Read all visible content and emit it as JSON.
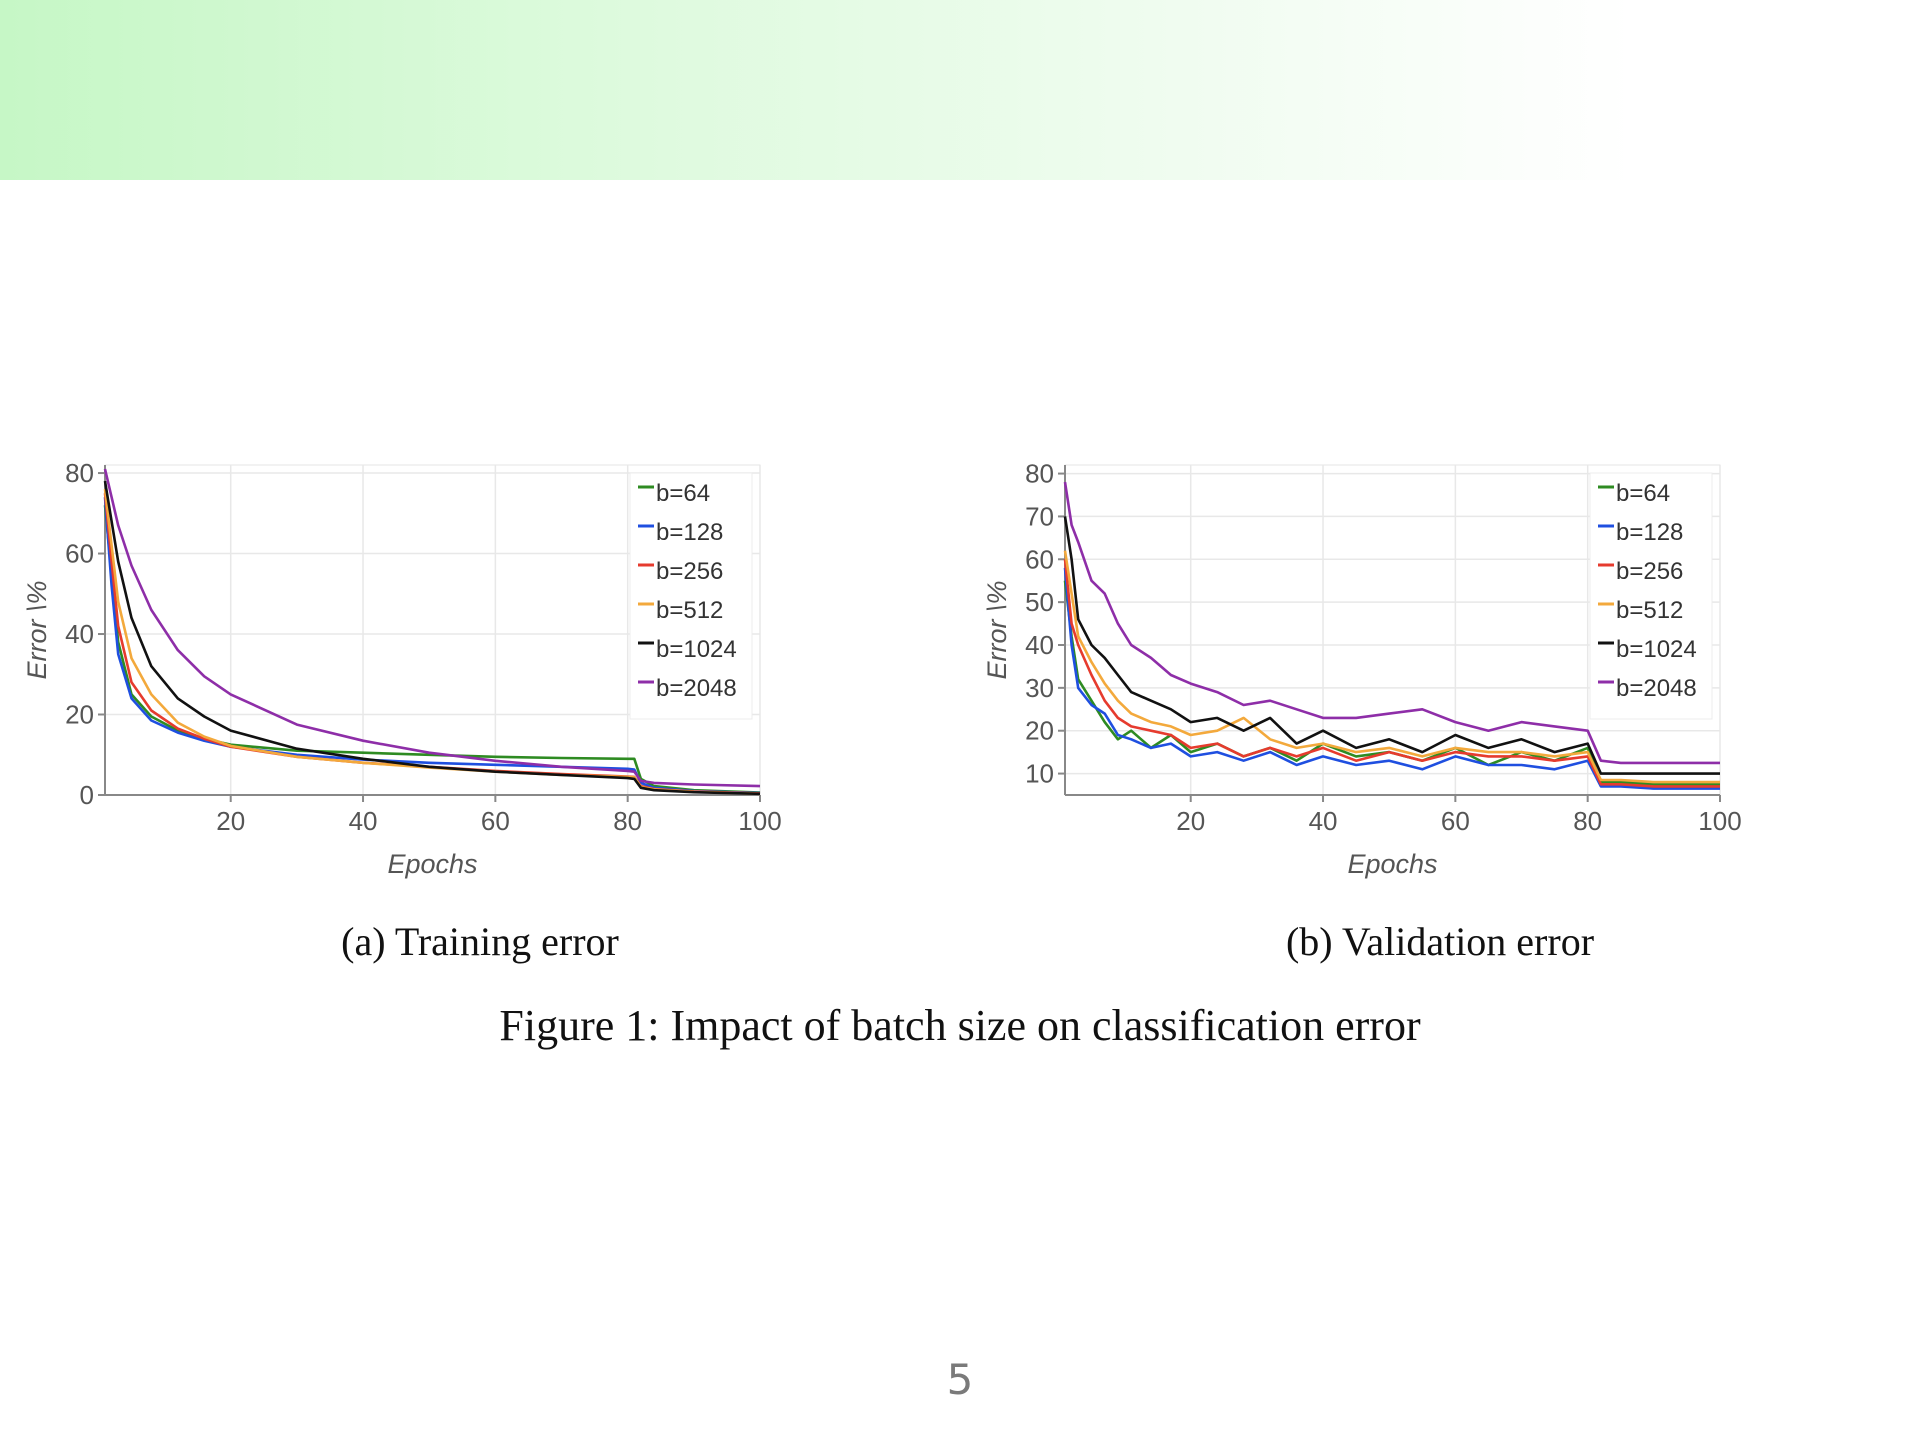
{
  "page_number": "5",
  "figure_caption": "Figure 1: Impact of batch size on classification error",
  "series_colors": {
    "b=64": "#2e8b22",
    "b=128": "#1f4fe0",
    "b=256": "#e63b2e",
    "b=512": "#f3a93c",
    "b=1024": "#111111",
    "b=2048": "#8e2ea8"
  },
  "chart_data": [
    {
      "type": "line",
      "caption": "(a) Training error",
      "xlabel": "Epochs",
      "ylabel": "Error \\%",
      "xlim": [
        1,
        100
      ],
      "ylim": [
        0,
        82
      ],
      "xticks": [
        20,
        40,
        60,
        80,
        100
      ],
      "yticks": [
        0,
        20,
        40,
        60,
        80
      ],
      "grid": true,
      "legend_position": "top-right",
      "series": [
        {
          "name": "b=64",
          "x": [
            1,
            2,
            3,
            5,
            8,
            12,
            16,
            20,
            30,
            40,
            50,
            60,
            70,
            80,
            81,
            82,
            84,
            90,
            100
          ],
          "values": [
            72,
            55,
            38,
            25,
            19.5,
            16,
            14,
            12.5,
            11,
            10.5,
            10,
            9.5,
            9.2,
            9,
            9,
            4,
            2.2,
            1.2,
            0.6
          ]
        },
        {
          "name": "b=128",
          "x": [
            1,
            2,
            3,
            5,
            8,
            12,
            16,
            20,
            30,
            40,
            50,
            60,
            70,
            80,
            81,
            82,
            84,
            90,
            100
          ],
          "values": [
            74,
            52,
            35,
            24,
            18.5,
            15.5,
            13.5,
            12,
            10,
            8.8,
            8,
            7.5,
            7,
            6.5,
            6.3,
            3,
            1.8,
            1,
            0.5
          ]
        },
        {
          "name": "b=256",
          "x": [
            1,
            2,
            3,
            5,
            8,
            12,
            16,
            20,
            30,
            40,
            50,
            60,
            70,
            80,
            81,
            82,
            84,
            90,
            100
          ],
          "values": [
            75,
            58,
            42,
            28,
            21,
            16.5,
            14,
            12,
            9.5,
            8,
            7,
            6,
            5.2,
            4.6,
            4.5,
            2.2,
            1.5,
            0.9,
            0.4
          ]
        },
        {
          "name": "b=512",
          "x": [
            1,
            2,
            3,
            5,
            8,
            12,
            16,
            20,
            30,
            40,
            50,
            60,
            70,
            80,
            81,
            82,
            84,
            90,
            100
          ],
          "values": [
            76,
            62,
            48,
            34,
            25,
            18,
            14.5,
            12.2,
            9.5,
            8,
            6.8,
            5.8,
            5,
            4.5,
            4.4,
            2,
            1.4,
            0.8,
            0.3
          ]
        },
        {
          "name": "b=1024",
          "x": [
            1,
            2,
            3,
            5,
            8,
            12,
            16,
            20,
            30,
            40,
            50,
            60,
            70,
            80,
            81,
            82,
            84,
            90,
            100
          ],
          "values": [
            78,
            68,
            58,
            44,
            32,
            24,
            19.5,
            16,
            11.5,
            9,
            7,
            5.8,
            5,
            4.2,
            4,
            1.8,
            1.2,
            0.7,
            0.3
          ]
        },
        {
          "name": "b=2048",
          "x": [
            1,
            2,
            3,
            5,
            8,
            12,
            16,
            20,
            30,
            40,
            50,
            60,
            70,
            80,
            81,
            82,
            84,
            90,
            100
          ],
          "values": [
            81,
            74,
            67,
            57,
            46,
            36,
            29.5,
            25,
            17.5,
            13.5,
            10.5,
            8.5,
            7,
            6,
            5.8,
            3.5,
            3,
            2.6,
            2.2
          ]
        }
      ]
    },
    {
      "type": "line",
      "caption": "(b) Validation error",
      "xlabel": "Epochs",
      "ylabel": "Error \\%",
      "xlim": [
        1,
        100
      ],
      "ylim": [
        5,
        82
      ],
      "xticks": [
        20,
        40,
        60,
        80,
        100
      ],
      "yticks": [
        10,
        20,
        30,
        40,
        50,
        60,
        70,
        80
      ],
      "grid": true,
      "legend_position": "top-right",
      "series": [
        {
          "name": "b=64",
          "x": [
            1,
            2,
            3,
            5,
            7,
            9,
            11,
            14,
            17,
            20,
            24,
            28,
            32,
            36,
            40,
            45,
            50,
            55,
            60,
            65,
            70,
            75,
            80,
            82,
            85,
            90,
            100
          ],
          "values": [
            55,
            42,
            32,
            27,
            22,
            18,
            20,
            16,
            19,
            15,
            17,
            14,
            16,
            13,
            17,
            14,
            15,
            13,
            16,
            12,
            15,
            13,
            16,
            8,
            8,
            7.5,
            7.5
          ]
        },
        {
          "name": "b=128",
          "x": [
            1,
            2,
            3,
            5,
            7,
            9,
            11,
            14,
            17,
            20,
            24,
            28,
            32,
            36,
            40,
            45,
            50,
            55,
            60,
            65,
            70,
            75,
            80,
            82,
            85,
            90,
            100
          ],
          "values": [
            58,
            40,
            30,
            26,
            24,
            19,
            18,
            16,
            17,
            14,
            15,
            13,
            15,
            12,
            14,
            12,
            13,
            11,
            14,
            12,
            12,
            11,
            13,
            7,
            7,
            6.5,
            6.5
          ]
        },
        {
          "name": "b=256",
          "x": [
            1,
            2,
            3,
            5,
            7,
            9,
            11,
            14,
            17,
            20,
            24,
            28,
            32,
            36,
            40,
            45,
            50,
            55,
            60,
            65,
            70,
            75,
            80,
            82,
            85,
            90,
            100
          ],
          "values": [
            60,
            45,
            40,
            33,
            27,
            23,
            21,
            20,
            19,
            16,
            17,
            14,
            16,
            14,
            16,
            13,
            15,
            13,
            15,
            14,
            14,
            13,
            14,
            7.5,
            7.5,
            7,
            7
          ]
        },
        {
          "name": "b=512",
          "x": [
            1,
            2,
            3,
            5,
            7,
            9,
            11,
            14,
            17,
            20,
            24,
            28,
            32,
            36,
            40,
            45,
            50,
            55,
            60,
            65,
            70,
            75,
            80,
            82,
            85,
            90,
            100
          ],
          "values": [
            62,
            52,
            42,
            36,
            31,
            27,
            24,
            22,
            21,
            19,
            20,
            23,
            18,
            16,
            17,
            15,
            16,
            14,
            16,
            15,
            15,
            14,
            15,
            8.5,
            8.5,
            8,
            8
          ]
        },
        {
          "name": "b=1024",
          "x": [
            1,
            2,
            3,
            5,
            7,
            9,
            11,
            14,
            17,
            20,
            24,
            28,
            32,
            36,
            40,
            45,
            50,
            55,
            60,
            65,
            70,
            75,
            80,
            82,
            85,
            90,
            100
          ],
          "values": [
            70,
            60,
            46,
            40,
            37,
            33,
            29,
            27,
            25,
            22,
            23,
            20,
            23,
            17,
            20,
            16,
            18,
            15,
            19,
            16,
            18,
            15,
            17,
            10,
            10,
            10,
            10
          ]
        },
        {
          "name": "b=2048",
          "x": [
            1,
            2,
            3,
            5,
            7,
            9,
            11,
            14,
            17,
            20,
            24,
            28,
            32,
            36,
            40,
            45,
            50,
            55,
            60,
            65,
            70,
            75,
            80,
            82,
            85,
            90,
            100
          ],
          "values": [
            78,
            68,
            64,
            55,
            52,
            45,
            40,
            37,
            33,
            31,
            29,
            26,
            27,
            25,
            23,
            23,
            24,
            25,
            22,
            20,
            22,
            21,
            20,
            13,
            12.5,
            12.5,
            12.5
          ]
        }
      ]
    }
  ]
}
